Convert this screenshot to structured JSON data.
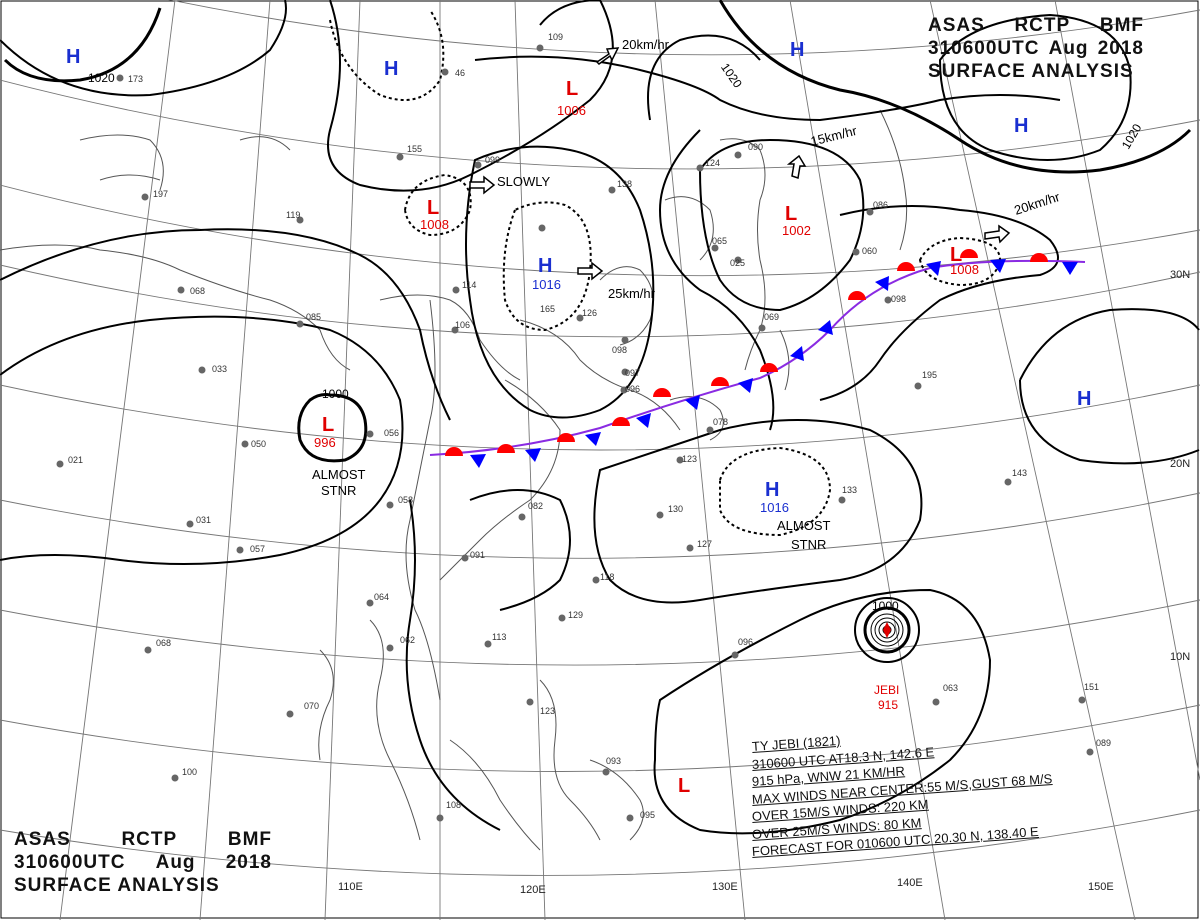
{
  "header_top_right": {
    "line1": [
      "ASAS",
      "RCTP",
      "BMF"
    ],
    "line2": [
      "310600UTC",
      "Aug",
      "2018"
    ],
    "line3": "SURFACE ANALYSIS"
  },
  "header_bottom_left": {
    "line1": [
      "ASAS",
      "RCTP",
      "BMF"
    ],
    "line2": [
      "310600UTC",
      "Aug",
      "2018"
    ],
    "line3": "SURFACE ANALYSIS"
  },
  "colors": {
    "high": "#1a2fd0",
    "low": "#e00000",
    "front_warm": "#ff0000",
    "front_cold": "#0000ff",
    "isobar": "#000000",
    "coast": "#555555"
  },
  "longitude_labels": [
    "110E",
    "120E",
    "130E",
    "140E",
    "150E"
  ],
  "latitude_labels": [
    "30N",
    "20N",
    "10N"
  ],
  "pressure_centers": [
    {
      "id": "h-nw",
      "type": "H",
      "value": ""
    },
    {
      "id": "h-n",
      "type": "H",
      "value": ""
    },
    {
      "id": "l-n",
      "type": "L",
      "value": "1006"
    },
    {
      "id": "l-mid",
      "type": "L",
      "value": "1008"
    },
    {
      "id": "h-mid",
      "type": "H",
      "value": "1016"
    },
    {
      "id": "l-west",
      "type": "L",
      "value": "996"
    },
    {
      "id": "l-japan",
      "type": "L",
      "value": "1002"
    },
    {
      "id": "l-front",
      "type": "L",
      "value": "1008"
    },
    {
      "id": "h-ne",
      "type": "H",
      "value": ""
    },
    {
      "id": "h-ne2",
      "type": "H",
      "value": ""
    },
    {
      "id": "h-e",
      "type": "H",
      "value": ""
    },
    {
      "id": "h-s",
      "type": "H",
      "value": "1016"
    },
    {
      "id": "l-se",
      "type": "L",
      "value": ""
    }
  ],
  "isobar_labels": [
    "1020",
    "1020",
    "1020",
    "1000",
    "1000"
  ],
  "motion_labels": {
    "n": "20km/hr",
    "mid": "SLOWLY",
    "h_mid": "25km/hr",
    "japan": "15km/hr",
    "front": "20km/hr"
  },
  "stationary_notes": [
    "ALMOST",
    "STNR",
    "ALMOST",
    "STNR"
  ],
  "typhoon": {
    "name": "JEBI",
    "pressure": "915",
    "info_lines": [
      "TY  JEBI  (1821)",
      "310600 UTC  AT18.3 N, 142.6 E",
      "915 hPa, WNW  21 KM/HR",
      "MAX WINDS NEAR CENTER:55 M/S,GUST 68 M/S",
      "OVER 15M/S WINDS: 220 KM",
      "OVER 25M/S WINDS: 80 KM",
      "FORECAST FOR 010600 UTC 20.30 N, 138.40 E"
    ]
  },
  "station_values": [
    "109",
    "173",
    "46",
    "155",
    "099",
    "197",
    "119",
    "138",
    "124",
    "090",
    "086",
    "065",
    "069",
    "085",
    "056",
    "058",
    "050",
    "068",
    "106",
    "031",
    "021",
    "082",
    "098",
    "097",
    "096",
    "113",
    "114",
    "126",
    "123",
    "130",
    "129",
    "127",
    "118",
    "091",
    "100",
    "108",
    "093",
    "095",
    "062",
    "064",
    "070",
    "063",
    "068",
    "143",
    "151",
    "133",
    "195",
    "098",
    "025",
    "165",
    "057",
    "033",
    "078",
    "060",
    "123",
    "096",
    "089"
  ]
}
